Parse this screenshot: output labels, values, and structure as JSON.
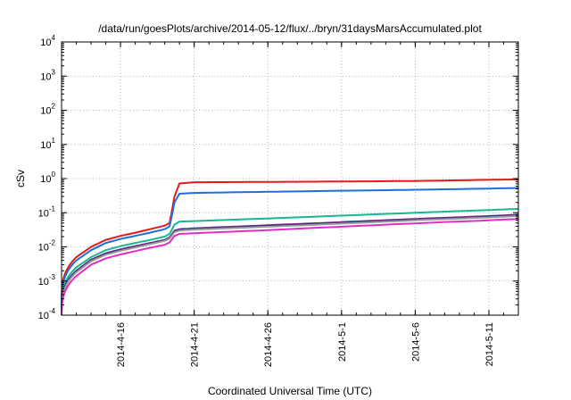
{
  "chart_data": {
    "type": "line",
    "title": "/data/run/goesPlots/archive/2014-05-12/flux/../bryn/31daysMarsAccumulated.plot",
    "xlabel": "Coordinated Universal Time (UTC)",
    "ylabel": "cSv",
    "yscale": "log",
    "ylim": [
      0.0001,
      10000
    ],
    "xlim": [
      "2014-04-12",
      "2014-05-13"
    ],
    "grid": true,
    "x_ticks": [
      "2014-4-16",
      "2014-4-21",
      "2014-4-26",
      "2014-5-1",
      "2014-5-6",
      "2014-5-11"
    ],
    "y_ticks": [
      {
        "value": 0.0001,
        "base": "10",
        "exp": "-4"
      },
      {
        "value": 0.001,
        "base": "10",
        "exp": "-3"
      },
      {
        "value": 0.01,
        "base": "10",
        "exp": "-2"
      },
      {
        "value": 0.1,
        "base": "10",
        "exp": "-1"
      },
      {
        "value": 1,
        "base": "10",
        "exp": "0"
      },
      {
        "value": 10,
        "base": "10",
        "exp": "1"
      },
      {
        "value": 100,
        "base": "10",
        "exp": "2"
      },
      {
        "value": 1000,
        "base": "10",
        "exp": "3"
      },
      {
        "value": 10000,
        "base": "10",
        "exp": "4"
      }
    ],
    "x": [
      "2014-04-12",
      "2014-04-13",
      "2014-04-14",
      "2014-04-15",
      "2014-04-16",
      "2014-04-17",
      "2014-04-18",
      "2014-04-19",
      "2014-04-19T08:00",
      "2014-04-19T16:00",
      "2014-04-20",
      "2014-04-21",
      "2014-04-26",
      "2014-05-01",
      "2014-05-06",
      "2014-05-11",
      "2014-05-13"
    ],
    "series": [
      {
        "color": "#e8171c",
        "values": [
          0.0003,
          0.005,
          0.01,
          0.016,
          0.021,
          0.026,
          0.033,
          0.042,
          0.05,
          0.3,
          0.72,
          0.78,
          0.8,
          0.82,
          0.85,
          0.92,
          0.95
        ]
      },
      {
        "color": "#1f6fd8",
        "values": [
          0.00025,
          0.004,
          0.008,
          0.013,
          0.017,
          0.021,
          0.026,
          0.033,
          0.04,
          0.2,
          0.36,
          0.38,
          0.41,
          0.44,
          0.47,
          0.51,
          0.53
        ]
      },
      {
        "color": "#17b894",
        "values": [
          0.00018,
          0.0025,
          0.005,
          0.008,
          0.0105,
          0.013,
          0.016,
          0.02,
          0.024,
          0.045,
          0.055,
          0.057,
          0.068,
          0.082,
          0.1,
          0.12,
          0.13
        ]
      },
      {
        "color": "#7b2a8c",
        "values": [
          0.00015,
          0.002,
          0.0042,
          0.0065,
          0.0085,
          0.0105,
          0.013,
          0.016,
          0.019,
          0.03,
          0.033,
          0.035,
          0.043,
          0.053,
          0.066,
          0.08,
          0.088
        ]
      },
      {
        "color": "#2a2a7a",
        "values": [
          0.00014,
          0.0019,
          0.004,
          0.0062,
          0.008,
          0.01,
          0.0125,
          0.0155,
          0.018,
          0.028,
          0.031,
          0.033,
          0.041,
          0.05,
          0.062,
          0.076,
          0.083
        ]
      },
      {
        "color": "#9a9a9a",
        "values": [
          0.00013,
          0.0018,
          0.0038,
          0.0059,
          0.0077,
          0.0096,
          0.012,
          0.015,
          0.0175,
          0.027,
          0.03,
          0.032,
          0.039,
          0.048,
          0.06,
          0.073,
          0.08
        ]
      },
      {
        "color": "#e02fc4",
        "values": [
          0.0001,
          0.0014,
          0.003,
          0.0046,
          0.006,
          0.0075,
          0.0094,
          0.0115,
          0.0135,
          0.021,
          0.024,
          0.025,
          0.031,
          0.039,
          0.049,
          0.06,
          0.066
        ]
      }
    ]
  }
}
